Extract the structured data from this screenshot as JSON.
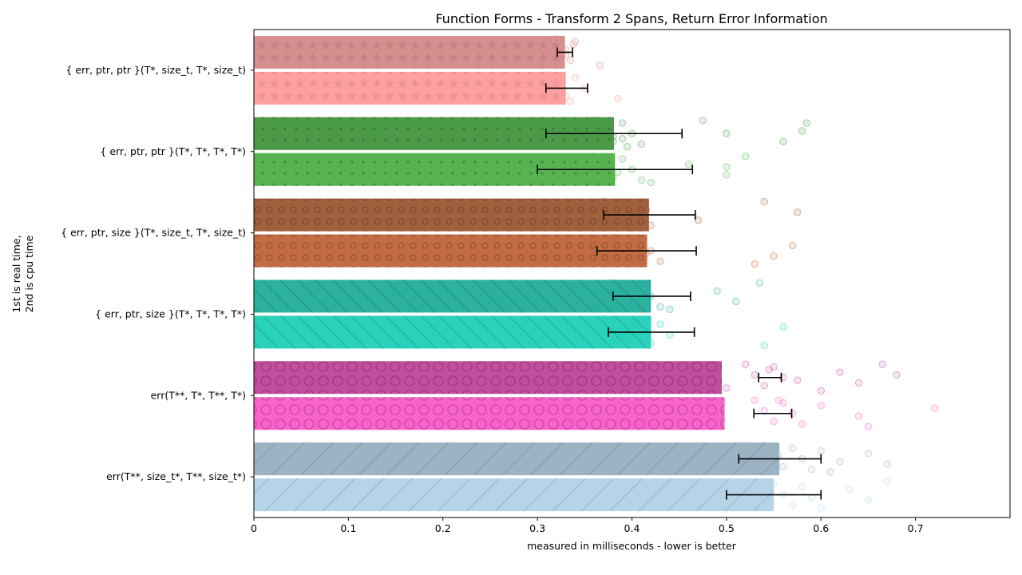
{
  "chart_data": {
    "type": "bar",
    "orientation": "horizontal",
    "title": "Function Forms - Transform 2 Spans, Return Error Information",
    "xlabel": "measured in milliseconds - lower is better",
    "ylabel_lines": [
      "1st is real time,",
      "2nd is cpu time"
    ],
    "xlim": [
      0,
      0.8
    ],
    "xticks": [
      "0",
      "0.1",
      "0.2",
      "0.3",
      "0.4",
      "0.5",
      "0.6",
      "0.7"
    ],
    "grid": false,
    "categories": [
      "{ err, ptr, ptr }(T*, size_t, T*, size_t)",
      "{ err, ptr, ptr }(T*, T*, T*, T*)",
      "{ err, ptr, size }(T*, size_t, T*, size_t)",
      "{ err, ptr, size }(T*, T*, T*, T*)",
      "err(T**, T*, T**, T*)",
      "err(T**, size_t*, T**, size_t*)"
    ],
    "series": [
      {
        "values": [
          0.329,
          0.381,
          0.418,
          0.42,
          0.495,
          0.556
        ],
        "error_low": [
          0.321,
          0.309,
          0.37,
          0.38,
          0.534,
          0.513
        ],
        "error_high": [
          0.337,
          0.453,
          0.467,
          0.462,
          0.558,
          0.6
        ],
        "colors": [
          "#d68f8f",
          "#4a9a48",
          "#a0603e",
          "#2bb19e",
          "#c34e9f",
          "#9cb3c3"
        ],
        "patterns": [
          "star",
          "dot",
          "ring",
          "diag-back",
          "big-ring",
          "diag"
        ]
      },
      {
        "values": [
          0.33,
          0.382,
          0.416,
          0.42,
          0.498,
          0.55
        ],
        "error_low": [
          0.309,
          0.3,
          0.363,
          0.375,
          0.529,
          0.5
        ],
        "error_high": [
          0.353,
          0.464,
          0.468,
          0.466,
          0.569,
          0.6
        ],
        "colors": [
          "#ffa0a0",
          "#56b34f",
          "#c36c43",
          "#29d2bb",
          "#fa62cd",
          "#b5d4e8"
        ],
        "patterns": [
          "star",
          "dot",
          "ring",
          "diag-back",
          "big-ring",
          "diag"
        ]
      }
    ],
    "scatter_points": {
      "real": [
        [
          0.32,
          0.33,
          0.335,
          0.34,
          0.31,
          0.325,
          0.338,
          0.33,
          0.366
        ],
        [
          0.36,
          0.37,
          0.38,
          0.39,
          0.4,
          0.41,
          0.37,
          0.38,
          0.395,
          0.36,
          0.39,
          0.475,
          0.58,
          0.56,
          0.585,
          0.5
        ],
        [
          0.37,
          0.38,
          0.39,
          0.4,
          0.41,
          0.42,
          0.395,
          0.385,
          0.4,
          0.415,
          0.47,
          0.54,
          0.575
        ],
        [
          0.38,
          0.39,
          0.4,
          0.41,
          0.42,
          0.43,
          0.395,
          0.405,
          0.44,
          0.49,
          0.51,
          0.535
        ],
        [
          0.52,
          0.53,
          0.54,
          0.55,
          0.56,
          0.5,
          0.545,
          0.575,
          0.6,
          0.62,
          0.64,
          0.665,
          0.68
        ],
        [
          0.54,
          0.55,
          0.56,
          0.57,
          0.58,
          0.59,
          0.6,
          0.62,
          0.61,
          0.65,
          0.67,
          0.525,
          0.555,
          0.545
        ]
      ],
      "cpu": [
        [
          0.31,
          0.32,
          0.33,
          0.34,
          0.35,
          0.385,
          0.3,
          0.325,
          0.335
        ],
        [
          0.36,
          0.37,
          0.38,
          0.39,
          0.4,
          0.41,
          0.375,
          0.385,
          0.42,
          0.46,
          0.5,
          0.52,
          0.5
        ],
        [
          0.38,
          0.39,
          0.4,
          0.41,
          0.42,
          0.43,
          0.395,
          0.415,
          0.53,
          0.57,
          0.55
        ],
        [
          0.37,
          0.38,
          0.39,
          0.4,
          0.41,
          0.42,
          0.43,
          0.44,
          0.54,
          0.56,
          0.395
        ],
        [
          0.53,
          0.54,
          0.55,
          0.56,
          0.57,
          0.58,
          0.6,
          0.64,
          0.65,
          0.72,
          0.49,
          0.555
        ],
        [
          0.52,
          0.53,
          0.54,
          0.55,
          0.56,
          0.57,
          0.58,
          0.59,
          0.6,
          0.63,
          0.65,
          0.67,
          0.505,
          0.545
        ]
      ]
    }
  }
}
